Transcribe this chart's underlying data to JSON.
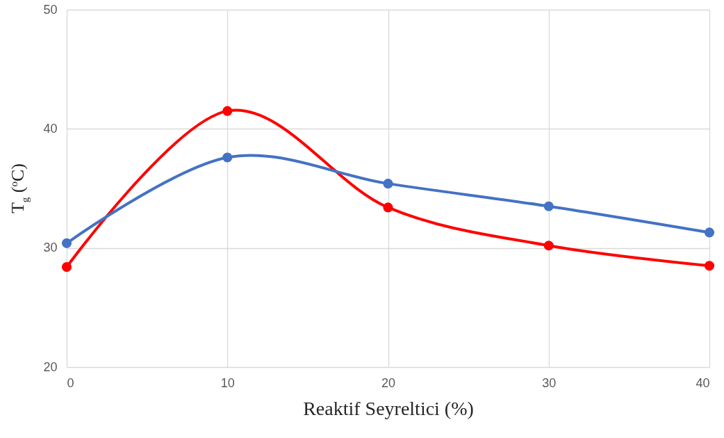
{
  "chart_data": {
    "type": "line",
    "xlabel": "Reaktif Seyreltici (%)",
    "ylabel": "T$_{g}$ ($^{o}$C)",
    "x": [
      0,
      10,
      20,
      30,
      40
    ],
    "series": [
      {
        "color": "#ff0000",
        "values": [
          28.4,
          41.5,
          33.4,
          30.2,
          28.5
        ]
      },
      {
        "color": "#4472c4",
        "values": [
          30.4,
          37.6,
          35.4,
          33.5,
          31.3
        ]
      }
    ],
    "xlim": [
      0,
      40
    ],
    "xticks": [
      0,
      10,
      20,
      30,
      40
    ],
    "ylim": [
      20,
      50
    ],
    "yticks": [
      20,
      30,
      40,
      50
    ],
    "grid": true,
    "marker": "circle",
    "line_style": "solid"
  }
}
